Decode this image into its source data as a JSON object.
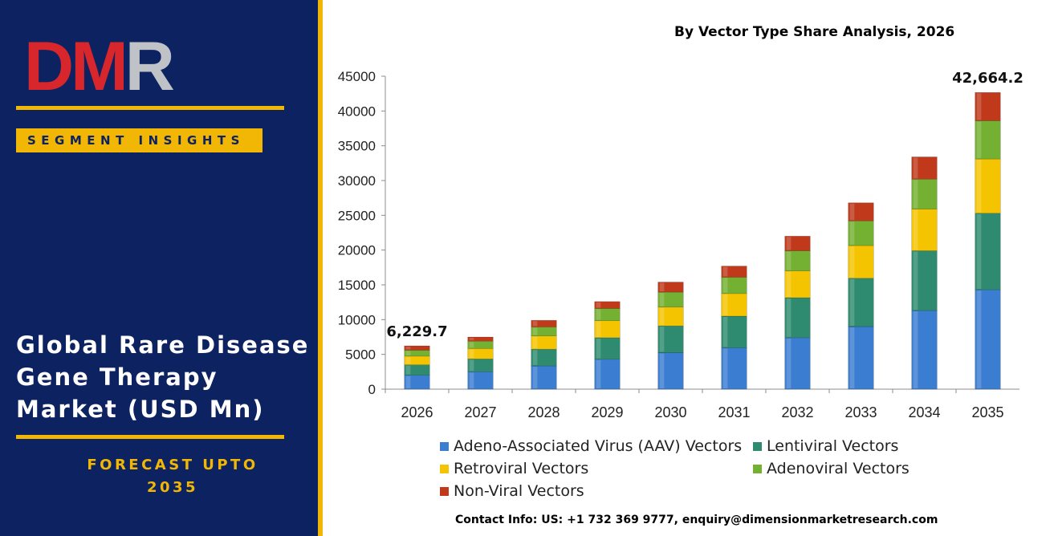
{
  "logo": {
    "text": "DMR",
    "colors": [
      "#d7262c",
      "#bfc3c8"
    ]
  },
  "left_panel": {
    "segment_banner": "SEGMENT INSIGHTS",
    "title": "Global Rare Disease Gene Therapy Market (USD Mn)",
    "forecast_line1": "FORECAST UPTO",
    "forecast_line2": "2035"
  },
  "chart_data": {
    "type": "bar",
    "stacked": true,
    "title": "By Vector Type Share Analysis, 2026",
    "categories": [
      "2026",
      "2027",
      "2028",
      "2029",
      "2030",
      "2031",
      "2032",
      "2033",
      "2034",
      "2035"
    ],
    "ylim": [
      0,
      45000
    ],
    "yticks": [
      0,
      5000,
      10000,
      15000,
      20000,
      25000,
      30000,
      35000,
      40000,
      45000
    ],
    "grid": false,
    "legend_position": "bottom",
    "series": [
      {
        "name": "Adeno-Associated Virus (AAV) Vectors",
        "color": "#3a7dd1",
        "values": [
          2000,
          2500,
          3350,
          4300,
          5250,
          5950,
          7400,
          9000,
          11300,
          14300
        ]
      },
      {
        "name": "Lentiviral Vectors",
        "color": "#2e8b6f",
        "values": [
          1500,
          1850,
          2400,
          3100,
          3850,
          4550,
          5750,
          6950,
          8600,
          11000
        ]
      },
      {
        "name": "Retroviral Vectors",
        "color": "#f5c400",
        "values": [
          1250,
          1500,
          1900,
          2450,
          2700,
          3250,
          3850,
          4700,
          6000,
          7800
        ]
      },
      {
        "name": "Adenoviral Vectors",
        "color": "#74b031",
        "values": [
          850,
          1050,
          1300,
          1750,
          2150,
          2350,
          2900,
          3550,
          4300,
          5500
        ]
      },
      {
        "name": "Non-Viral Vectors",
        "color": "#c0391b",
        "values": [
          630,
          600,
          950,
          1000,
          1450,
          1600,
          2100,
          2600,
          3200,
          4064.2
        ]
      }
    ],
    "annotations": [
      {
        "category": "2026",
        "label": "6,229.7"
      },
      {
        "category": "2035",
        "label": "42,664.2"
      }
    ]
  },
  "contact": "Contact Info: US: +1 732 369 9777, enquiry@dimensionmarketresearch.com"
}
